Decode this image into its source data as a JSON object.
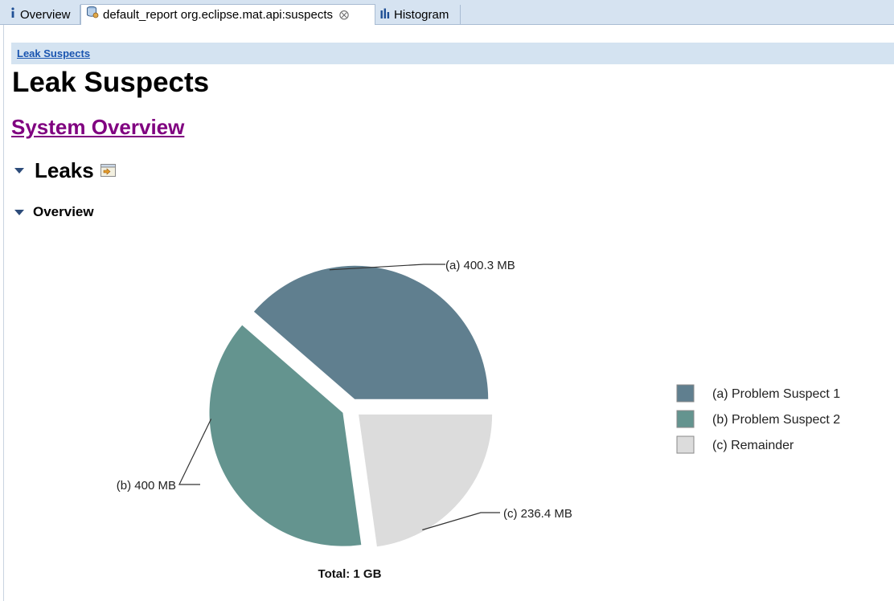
{
  "tabs": [
    {
      "label": "Overview",
      "icon": "info-icon",
      "active": false
    },
    {
      "label": "default_report  org.eclipse.mat.api:suspects",
      "icon": "report-db-icon",
      "active": true
    },
    {
      "label": "Histogram",
      "icon": "histogram-icon",
      "active": false
    }
  ],
  "breadcrumb": {
    "label": "Leak Suspects"
  },
  "page": {
    "title": "Leak Suspects",
    "system_overview_link": "System Overview",
    "leaks_heading": "Leaks",
    "overview_heading": "Overview"
  },
  "colors": {
    "slice_a": "#607f8f",
    "slice_b": "#64948f",
    "slice_c": "#dcdcdc",
    "link": "#1a55b0",
    "visited_link": "#800080",
    "tab_bar": "#d6e3f1"
  },
  "chart_data": {
    "type": "pie",
    "title": "",
    "total_label": "Total: 1 GB",
    "slices": [
      {
        "letter": "(a)",
        "value": 400.3,
        "unit": "MB",
        "value_label": "400.3 MB",
        "legend": "Problem Suspect 1"
      },
      {
        "letter": "(b)",
        "value": 400,
        "unit": "MB",
        "value_label": "400 MB",
        "legend": "Problem Suspect 2"
      },
      {
        "letter": "(c)",
        "value": 236.4,
        "unit": "MB",
        "value_label": "236.4 MB",
        "legend": "Remainder"
      }
    ],
    "legend_position": "right"
  }
}
